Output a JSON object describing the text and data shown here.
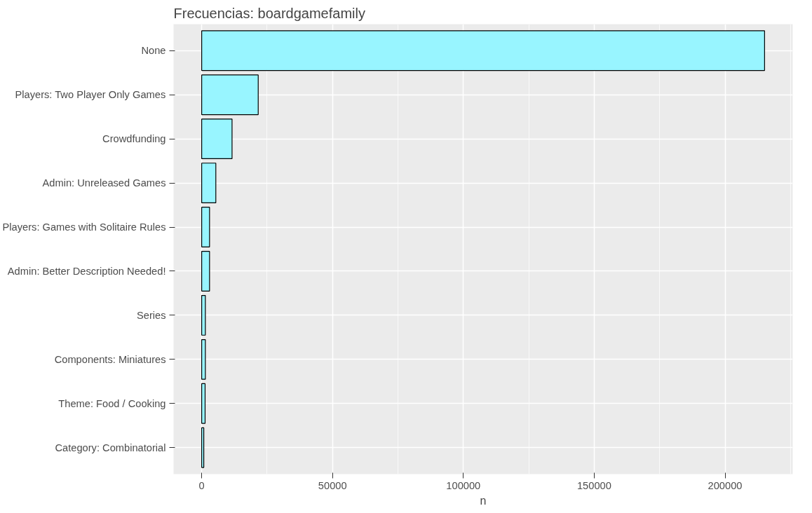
{
  "chart_data": {
    "type": "bar",
    "orientation": "horizontal",
    "title": "Frecuencias: boardgamefamily",
    "xlabel": "n",
    "categories": [
      "None",
      "Players: Two Player Only Games",
      "Crowdfunding",
      "Admin: Unreleased Games",
      "Players: Games with Solitaire Rules",
      "Admin: Better Description Needed!",
      "Series",
      "Components: Miniatures",
      "Theme: Food / Cooking",
      "Category: Combinatorial"
    ],
    "values": [
      215100,
      21600,
      11600,
      5400,
      3000,
      3000,
      1400,
      1400,
      1300,
      800
    ],
    "color": "#98f5ff",
    "xlim": [
      -10755,
      225855
    ],
    "xticks": [
      0,
      50000,
      100000,
      150000,
      200000
    ],
    "grid": true
  }
}
